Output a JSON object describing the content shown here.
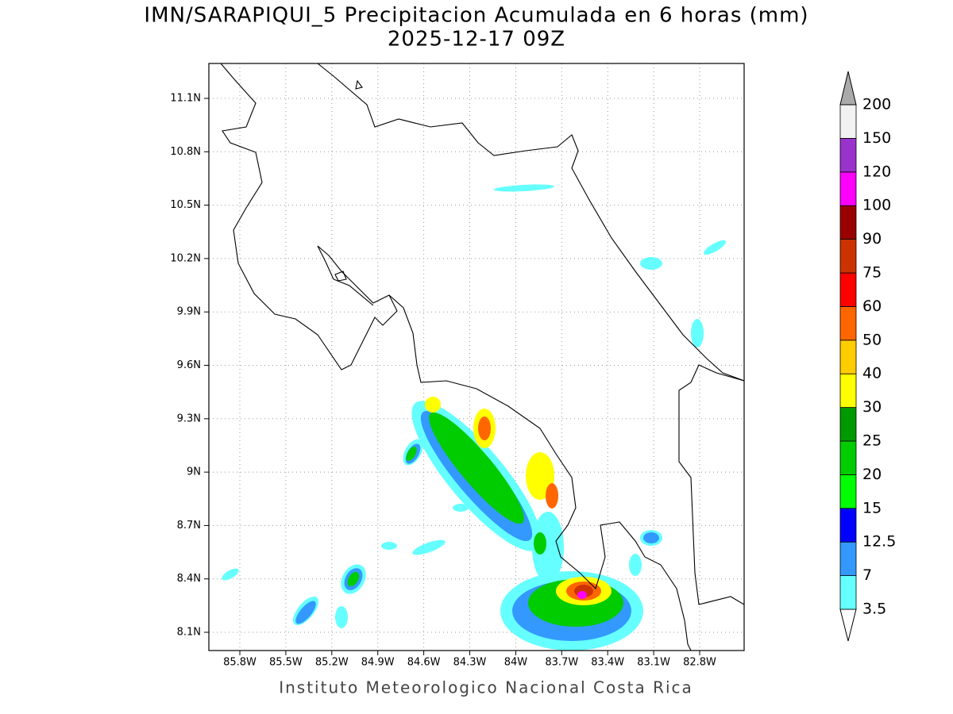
{
  "title": "IMN/SARAPIQUI_5 Precipitacion Acumulada en 6 horas (mm)",
  "subtitle": "2025-12-17 09Z",
  "map": {
    "lon_labels": [
      "85.8W",
      "85.5W",
      "85.2W",
      "84.9W",
      "84.6W",
      "84.3W",
      "84W",
      "83.7W",
      "83.4W",
      "83.1W",
      "82.8W"
    ],
    "lat_labels": [
      "11.1N",
      "10.8N",
      "10.5N",
      "10.2N",
      "9.9N",
      "9.6N",
      "9.3N",
      "9N",
      "8.7N",
      "8.4N",
      "8.1N"
    ]
  },
  "colorbar": {
    "levels": [
      3.5,
      7,
      12.5,
      15,
      20,
      25,
      30,
      40,
      50,
      60,
      75,
      90,
      100,
      120,
      150,
      200
    ],
    "colors": [
      "#ffffff",
      "#66ffff",
      "#3399ff",
      "#0000ff",
      "#00ff00",
      "#00cc00",
      "#009900",
      "#ffff00",
      "#ffcc00",
      "#ff6600",
      "#ff0000",
      "#cc3300",
      "#990000",
      "#ff00ff",
      "#9933cc",
      "#f2f2f2",
      "#aaaaaa"
    ]
  },
  "footer": "Instituto Meteorologico Nacional Costa Rica"
}
